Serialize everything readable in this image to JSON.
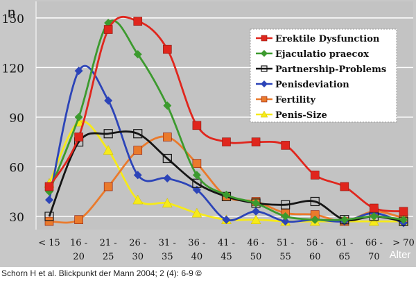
{
  "citation": {
    "text": "Schorn H et al. Blickpunkt der Mann 2004; 2 (4): 6-9",
    "mark": "©"
  },
  "chart_data": {
    "type": "line",
    "title": "",
    "ylabel": "n",
    "xlabel": "Alter",
    "ylim": [
      22,
      160
    ],
    "yticks": [
      30,
      60,
      90,
      120,
      150
    ],
    "categories": [
      [
        "< 15",
        ""
      ],
      [
        "16 -",
        "20"
      ],
      [
        "21 -",
        "25"
      ],
      [
        "26 -",
        "30"
      ],
      [
        "31 -",
        "35"
      ],
      [
        "36 -",
        "40"
      ],
      [
        "41 -",
        "45"
      ],
      [
        "46 -",
        "50"
      ],
      [
        "51 -",
        "55"
      ],
      [
        "56 -",
        "60"
      ],
      [
        "61 -",
        "65"
      ],
      [
        "66 -",
        "70"
      ],
      [
        "> 70",
        ""
      ]
    ],
    "legend_position": "top-right",
    "grid": "horizontal",
    "series": [
      {
        "name": "Erektile Dysfunction",
        "color": "#e0261d",
        "marker": "square",
        "values": [
          48,
          78,
          143,
          148,
          131,
          85,
          75,
          75,
          73,
          55,
          48,
          35,
          33
        ]
      },
      {
        "name": "Ejaculatio praecox",
        "color": "#3c9a2e",
        "marker": "diamond",
        "values": [
          45,
          90,
          147,
          128,
          97,
          55,
          43,
          38,
          30,
          28,
          28,
          30,
          28
        ]
      },
      {
        "name": "Partnership-Problems",
        "color": "#151515",
        "marker": "open-square",
        "values": [
          30,
          75,
          80,
          80,
          65,
          50,
          42,
          38,
          37,
          39,
          28,
          30,
          27
        ]
      },
      {
        "name": "Penisdeviation",
        "color": "#2c44b8",
        "marker": "diamond",
        "values": [
          40,
          118,
          100,
          55,
          53,
          46,
          28,
          33,
          27,
          28,
          27,
          32,
          26
        ]
      },
      {
        "name": "Fertility",
        "color": "#ea7a2c",
        "marker": "square",
        "values": [
          27,
          28,
          48,
          70,
          78,
          62,
          42,
          39,
          32,
          31,
          27,
          33,
          29
        ]
      },
      {
        "name": "Penis-Size",
        "color": "#f6ea1a",
        "marker": "triangle",
        "values": [
          50,
          87,
          70,
          40,
          38,
          32,
          28,
          28,
          27,
          27,
          27,
          27,
          27
        ]
      }
    ]
  }
}
